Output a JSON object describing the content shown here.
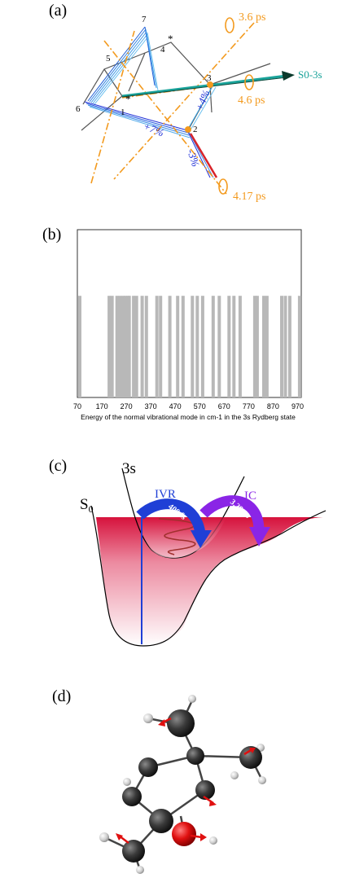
{
  "panel_a": {
    "label": "(a)",
    "atoms": [
      "7",
      "*",
      "4",
      "5",
      "3",
      "6",
      "*",
      "1",
      "2"
    ],
    "axis_label": "S0-3s",
    "rotations": [
      "3.6 ps",
      "4.6 ps",
      "4.17 ps"
    ],
    "changes": [
      "+4%",
      "+7%",
      "-3%"
    ],
    "colors": {
      "orange": "#f39a1e",
      "teal": "#1aa39a",
      "blue": "#1f2fd6",
      "skyblue": "#3aa6e6",
      "red": "#d8232a"
    }
  },
  "panel_b": {
    "label": "(b)",
    "xlabel": "Energy of the normal vibrational mode in cm-1 in the 3s Rydberg state",
    "ticks": [
      "70",
      "170",
      "270",
      "370",
      "470",
      "570",
      "670",
      "770",
      "870",
      "970"
    ]
  },
  "chart_data": {
    "type": "bar",
    "xlabel": "Energy of the normal vibrational mode in cm-1 in the 3s Rydberg state",
    "xlim": [
      70,
      985
    ],
    "x_ticks": [
      70,
      170,
      270,
      370,
      470,
      570,
      670,
      770,
      870,
      970
    ],
    "x": [
      80,
      200,
      212,
      232,
      244,
      256,
      266,
      276,
      282,
      300,
      312,
      335,
      352,
      395,
      410,
      448,
      480,
      502,
      540,
      560,
      582,
      625,
      650,
      690,
      710,
      735,
      795,
      805,
      832,
      845,
      905,
      920,
      938,
      978
    ],
    "values": [
      1,
      1,
      1,
      1,
      1,
      1,
      1,
      1,
      1,
      1,
      1,
      1,
      1,
      1,
      1,
      1,
      1,
      1,
      1,
      1,
      1,
      1,
      1,
      1,
      1,
      1,
      1,
      1,
      1,
      1,
      1,
      1,
      1,
      1
    ],
    "ylim": [
      0,
      1.65
    ],
    "bar_color": "#b8b8b8"
  },
  "panel_c": {
    "label": "(c)",
    "state_upper": "3s",
    "state_lower": "S",
    "state_lower_sub": "0",
    "ivr": {
      "label": "IVR",
      "time": "400 fs"
    },
    "ic": {
      "label": "IC",
      "time": "3.28 ps"
    }
  },
  "panel_d": {
    "label": "(d)"
  }
}
